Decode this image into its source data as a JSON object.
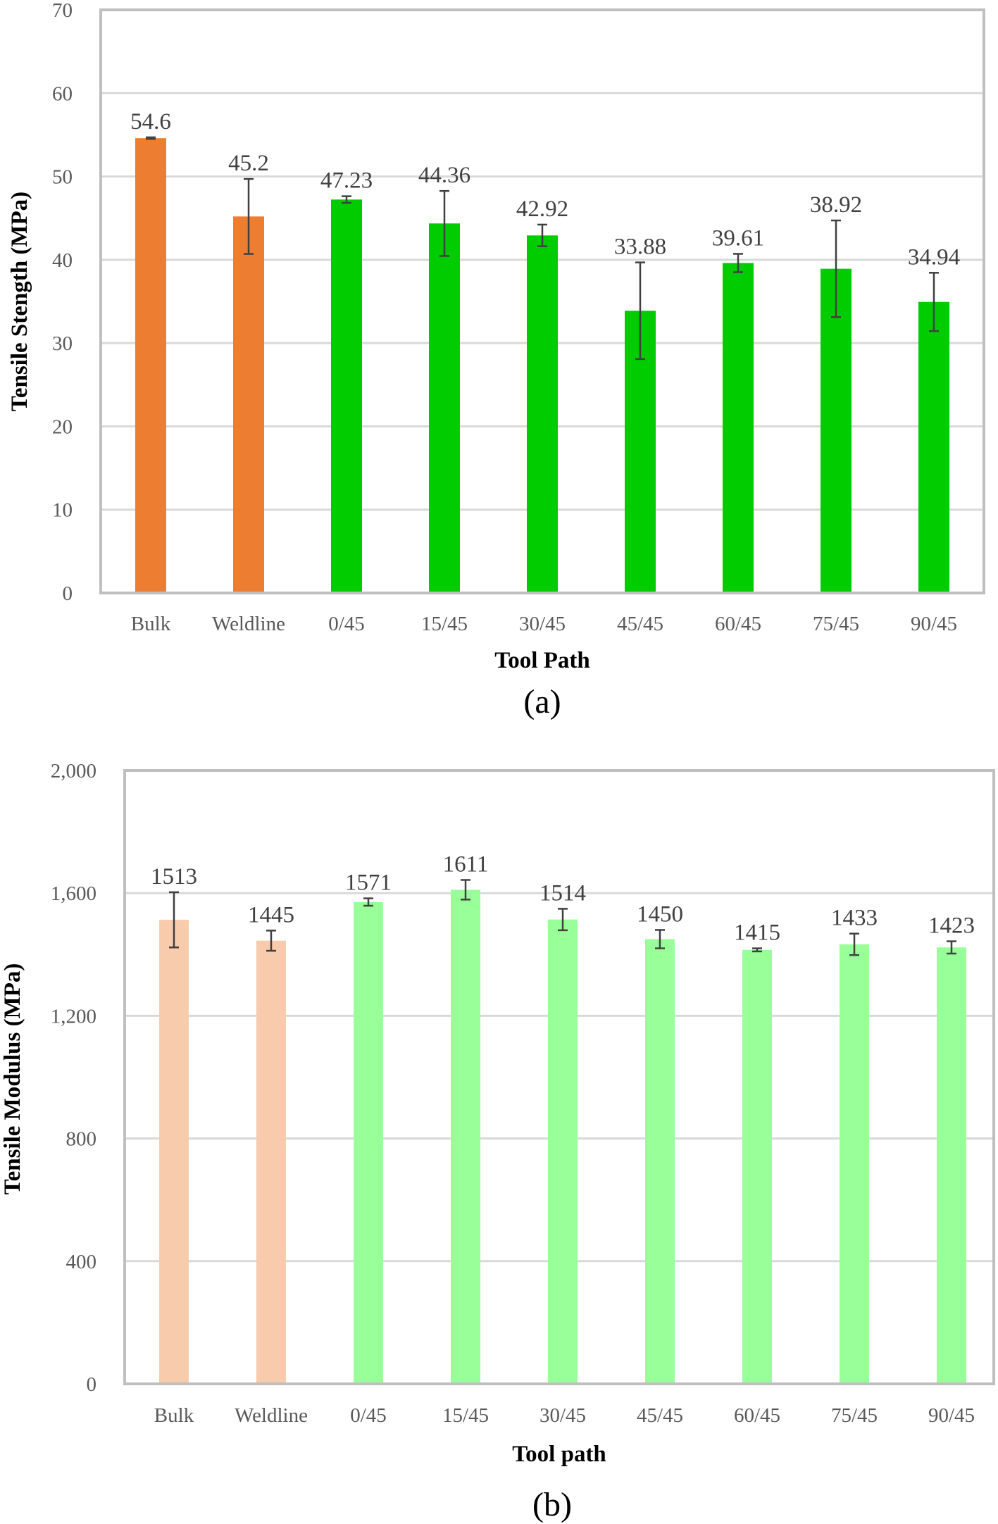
{
  "chart_data": [
    {
      "type": "bar",
      "panel_label": "(a)",
      "xlabel": "Tool Path",
      "ylabel": "Tensile Stength (MPa)",
      "ylim": [
        0,
        70
      ],
      "yticks": [
        0,
        10,
        20,
        30,
        40,
        50,
        60,
        70
      ],
      "ytick_labels": [
        "0",
        "10",
        "20",
        "30",
        "40",
        "50",
        "60",
        "70"
      ],
      "grid": true,
      "categories": [
        "Bulk",
        "Weldline",
        "0/45",
        "15/45",
        "30/45",
        "45/45",
        "60/45",
        "75/45",
        "90/45"
      ],
      "values": [
        54.6,
        45.2,
        47.23,
        44.36,
        42.92,
        33.88,
        39.61,
        38.92,
        34.94
      ],
      "value_labels": [
        "54.6",
        "45.2",
        "47.23",
        "44.36",
        "42.92",
        "33.88",
        "39.61",
        "38.92",
        "34.94"
      ],
      "errors": [
        0.1,
        4.5,
        0.4,
        3.9,
        1.3,
        5.8,
        1.1,
        5.8,
        3.5
      ],
      "colors": [
        "#ED7D31",
        "#ED7D31",
        "#00CC00",
        "#00CC00",
        "#00CC00",
        "#00CC00",
        "#00CC00",
        "#00CC00",
        "#00CC00"
      ]
    },
    {
      "type": "bar",
      "panel_label": "(b)",
      "xlabel": "Tool path",
      "ylabel": "Tensile Modulus  (MPa)",
      "ylim": [
        0,
        2000
      ],
      "yticks": [
        0,
        400,
        800,
        1200,
        1600,
        2000
      ],
      "ytick_labels": [
        "0",
        "400",
        "800",
        "1,200",
        "1,600",
        "2,000"
      ],
      "grid": true,
      "categories": [
        "Bulk",
        "Weldline",
        "0/45",
        "15/45",
        "30/45",
        "45/45",
        "60/45",
        "75/45",
        "90/45"
      ],
      "values": [
        1513,
        1445,
        1571,
        1611,
        1514,
        1450,
        1415,
        1433,
        1423
      ],
      "value_labels": [
        "1513",
        "1445",
        "1571",
        "1611",
        "1514",
        "1450",
        "1415",
        "1433",
        "1423"
      ],
      "errors": [
        90,
        33,
        12,
        32,
        35,
        30,
        5,
        35,
        20
      ],
      "colors": [
        "#F8CBAD",
        "#F8CBAD",
        "#99FF99",
        "#99FF99",
        "#99FF99",
        "#99FF99",
        "#99FF99",
        "#99FF99",
        "#99FF99"
      ]
    }
  ]
}
